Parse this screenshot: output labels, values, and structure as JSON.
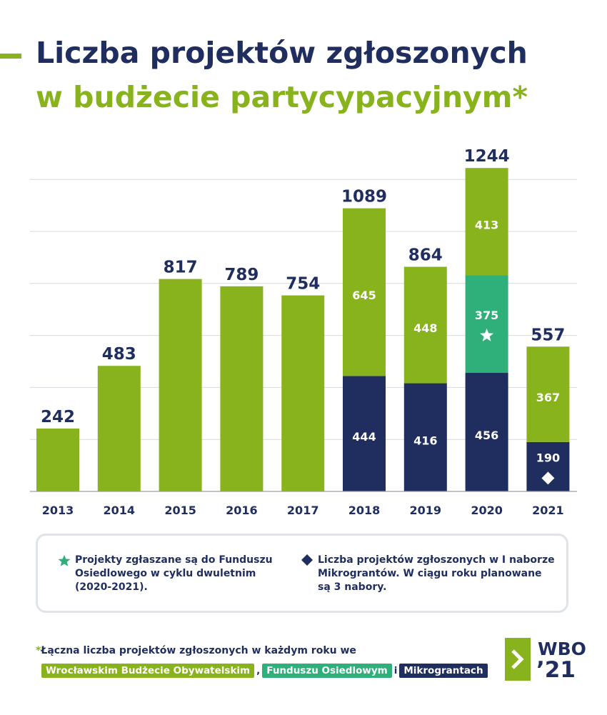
{
  "title_line1": "Liczba projektów zgłoszonych",
  "title_line2": "w budżecie partycypacyjnym*",
  "colors": {
    "wbo": "#88b31d",
    "fundusz": "#2fb07b",
    "mikro": "#1f2d5f",
    "grid": "#d6d9de"
  },
  "chart_data": {
    "type": "bar",
    "stacked": true,
    "categories": [
      "2013",
      "2014",
      "2015",
      "2016",
      "2017",
      "2018",
      "2019",
      "2020",
      "2021"
    ],
    "totals": [
      242,
      483,
      817,
      789,
      754,
      1089,
      864,
      1244,
      557
    ],
    "series": [
      {
        "name": "Mikrograntach",
        "color": "#1f2d5f",
        "values": [
          0,
          0,
          0,
          0,
          0,
          444,
          416,
          456,
          190
        ]
      },
      {
        "name": "Funduszu Osiedlowym",
        "color": "#2fb07b",
        "values": [
          0,
          0,
          0,
          0,
          0,
          0,
          0,
          375,
          0
        ]
      },
      {
        "name": "Wrocławskim Budżecie Obywatelskim",
        "color": "#88b31d",
        "values": [
          242,
          483,
          817,
          789,
          754,
          645,
          448,
          413,
          367
        ]
      }
    ],
    "segment_labels_shown": true,
    "markers": [
      {
        "category": "2020",
        "series": "Funduszu Osiedlowym",
        "symbol": "star"
      },
      {
        "category": "2021",
        "series": "Mikrograntach",
        "symbol": "diamond"
      }
    ],
    "ylim": [
      0,
      1250
    ],
    "gridlines": [
      200,
      400,
      600,
      800,
      1000,
      1200
    ],
    "grid": true
  },
  "legend": {
    "star_icon": "star-icon",
    "star_text": "Projekty zgłaszane są do Funduszu Osiedlowego w cyklu dwuletnim (2020-2021).",
    "diamond_icon": "diamond-icon",
    "diamond_text": "Liczba projektów zgłoszonych w I naborze Mikrograntów. W ciągu roku planowane są 3 nabory."
  },
  "footnote": {
    "asterisk": "*",
    "text": "Łączna liczba projektów zgłoszonych w każdym roku we",
    "tag_wbo": "Wrocławskim Budżecie Obywatelskim",
    "sep1": ",",
    "tag_fundusz": "Funduszu Osiedlowym",
    "sep2": "i",
    "tag_mikro": "Mikrograntach"
  },
  "logo": {
    "line1": "WBO",
    "line2": "’21"
  }
}
